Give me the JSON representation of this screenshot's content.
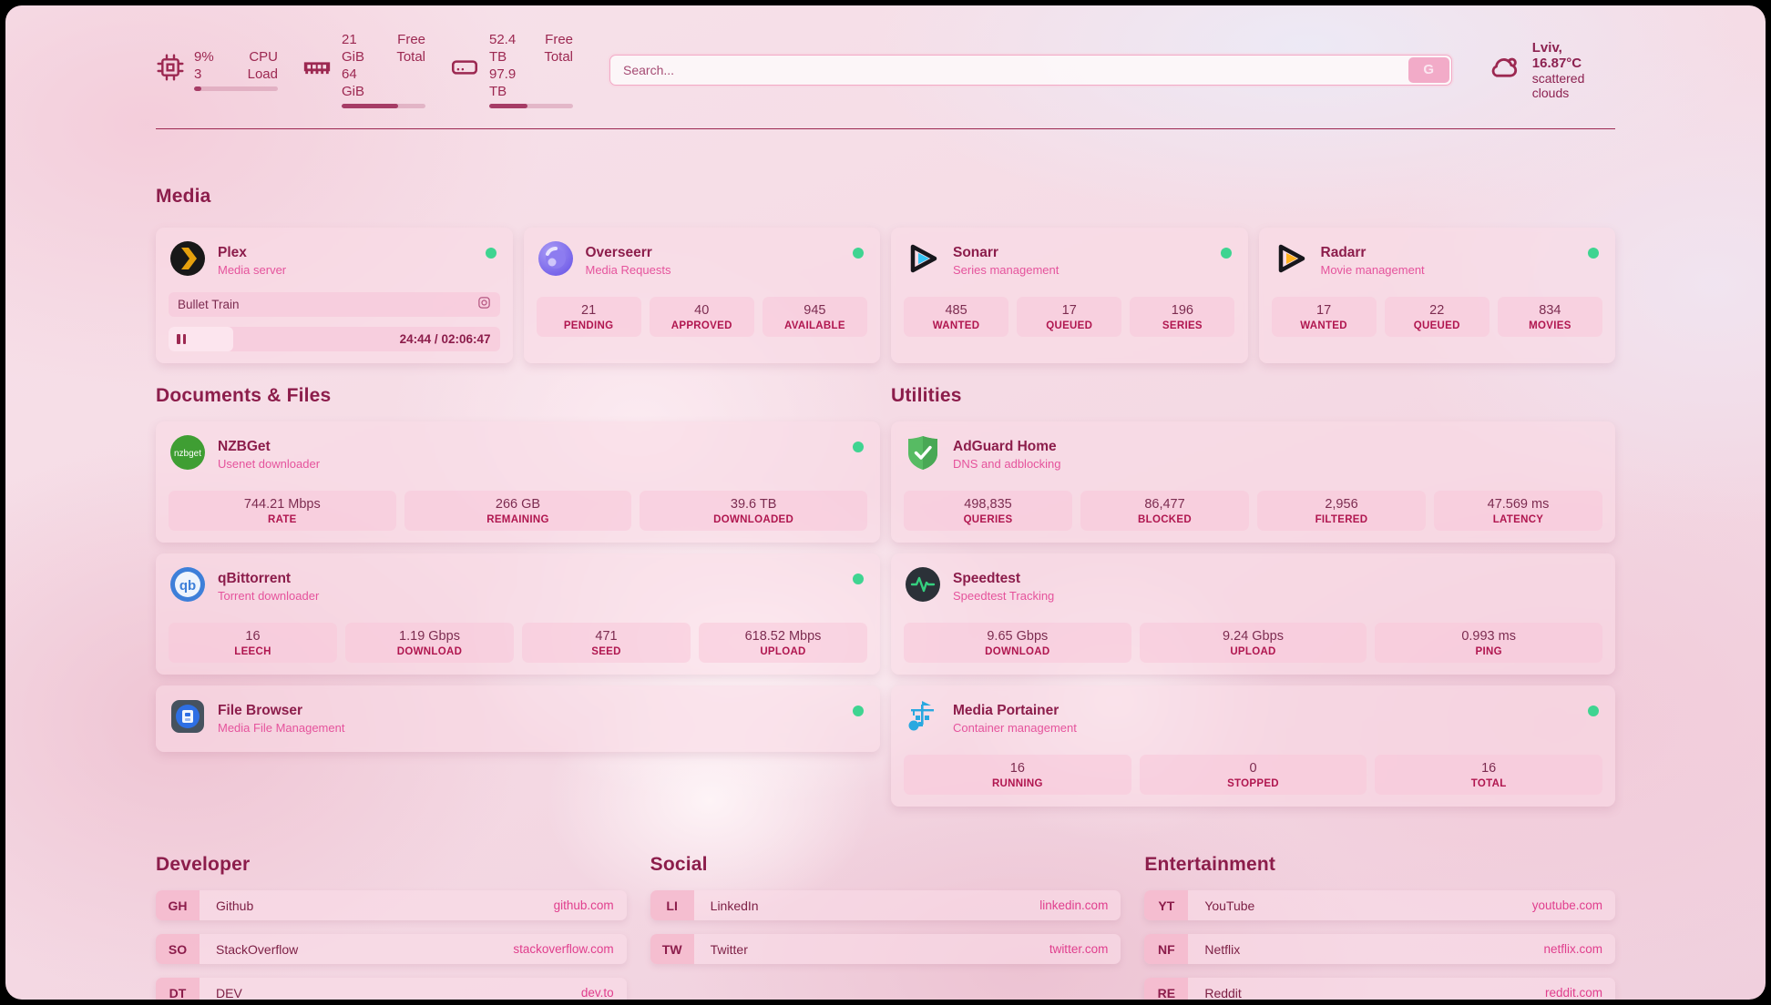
{
  "colors": {
    "accent": "#9c2851",
    "status_online": "#3fd491",
    "subtitle_pink": "#e5539c",
    "url_pink": "#e03e8d"
  },
  "topbar": {
    "stats": [
      {
        "icon": "cpu-icon",
        "values": [
          "9%",
          "3"
        ],
        "labels": [
          "CPU",
          "Load"
        ],
        "progress_pct": 9
      },
      {
        "icon": "ram-icon",
        "values": [
          "21 GiB",
          "64 GiB"
        ],
        "labels": [
          "Free",
          "Total"
        ],
        "progress_pct": 67
      },
      {
        "icon": "disk-icon",
        "values": [
          "52.4 TB",
          "97.9 TB"
        ],
        "labels": [
          "Free",
          "Total"
        ],
        "progress_pct": 46
      }
    ],
    "search": {
      "placeholder": "Search...",
      "button_label": "G"
    },
    "weather": {
      "icon": "cloud-icon",
      "location_temp": "Lviv, 16.87°C",
      "condition": "scattered clouds"
    }
  },
  "sections": {
    "media": {
      "title": "Media",
      "apps": [
        {
          "name": "Plex",
          "subtitle": "Media server",
          "icon": "plex-icon",
          "online": true,
          "now_playing": {
            "title": "Bullet Train",
            "elapsed": "24:44",
            "separator": "/",
            "duration": "02:06:47",
            "progress_pct": 19.5
          }
        },
        {
          "name": "Overseerr",
          "subtitle": "Media Requests",
          "icon": "overseerr-icon",
          "online": true,
          "stats": [
            {
              "value": "21",
              "label": "PENDING"
            },
            {
              "value": "40",
              "label": "APPROVED"
            },
            {
              "value": "945",
              "label": "AVAILABLE"
            }
          ]
        },
        {
          "name": "Sonarr",
          "subtitle": "Series management",
          "icon": "sonarr-icon",
          "online": true,
          "stats": [
            {
              "value": "485",
              "label": "WANTED"
            },
            {
              "value": "17",
              "label": "QUEUED"
            },
            {
              "value": "196",
              "label": "SERIES"
            }
          ]
        },
        {
          "name": "Radarr",
          "subtitle": "Movie management",
          "icon": "radarr-icon",
          "online": true,
          "stats": [
            {
              "value": "17",
              "label": "WANTED"
            },
            {
              "value": "22",
              "label": "QUEUED"
            },
            {
              "value": "834",
              "label": "MOVIES"
            }
          ]
        }
      ]
    },
    "documents": {
      "title": "Documents & Files",
      "apps": [
        {
          "name": "NZBGet",
          "subtitle": "Usenet downloader",
          "icon": "nzbget-icon",
          "online": true,
          "stats": [
            {
              "value": "744.21 Mbps",
              "label": "RATE"
            },
            {
              "value": "266 GB",
              "label": "REMAINING"
            },
            {
              "value": "39.6 TB",
              "label": "DOWNLOADED"
            }
          ]
        },
        {
          "name": "qBittorrent",
          "subtitle": "Torrent downloader",
          "icon": "qbittorrent-icon",
          "online": true,
          "stats": [
            {
              "value": "16",
              "label": "LEECH"
            },
            {
              "value": "1.19 Gbps",
              "label": "DOWNLOAD"
            },
            {
              "value": "471",
              "label": "SEED"
            },
            {
              "value": "618.52 Mbps",
              "label": "UPLOAD"
            }
          ]
        },
        {
          "name": "File Browser",
          "subtitle": "Media File Management",
          "icon": "filebrowser-icon",
          "online": true,
          "stats": []
        }
      ]
    },
    "utilities": {
      "title": "Utilities",
      "apps": [
        {
          "name": "AdGuard Home",
          "subtitle": "DNS and adblocking",
          "icon": "adguard-icon",
          "online": false,
          "stats": [
            {
              "value": "498,835",
              "label": "QUERIES"
            },
            {
              "value": "86,477",
              "label": "BLOCKED"
            },
            {
              "value": "2,956",
              "label": "FILTERED"
            },
            {
              "value": "47.569 ms",
              "label": "LATENCY"
            }
          ]
        },
        {
          "name": "Speedtest",
          "subtitle": "Speedtest Tracking",
          "icon": "speedtest-icon",
          "online": false,
          "stats": [
            {
              "value": "9.65 Gbps",
              "label": "DOWNLOAD"
            },
            {
              "value": "9.24 Gbps",
              "label": "UPLOAD"
            },
            {
              "value": "0.993 ms",
              "label": "PING"
            }
          ]
        },
        {
          "name": "Media Portainer",
          "subtitle": "Container management",
          "icon": "portainer-icon",
          "online": true,
          "stats": [
            {
              "value": "16",
              "label": "RUNNING"
            },
            {
              "value": "0",
              "label": "STOPPED"
            },
            {
              "value": "16",
              "label": "TOTAL"
            }
          ]
        }
      ]
    },
    "developer": {
      "title": "Developer",
      "bookmarks": [
        {
          "abbr": "GH",
          "name": "Github",
          "url": "github.com"
        },
        {
          "abbr": "SO",
          "name": "StackOverflow",
          "url": "stackoverflow.com"
        },
        {
          "abbr": "DT",
          "name": "DEV",
          "url": "dev.to"
        }
      ]
    },
    "social": {
      "title": "Social",
      "bookmarks": [
        {
          "abbr": "LI",
          "name": "LinkedIn",
          "url": "linkedin.com"
        },
        {
          "abbr": "TW",
          "name": "Twitter",
          "url": "twitter.com"
        }
      ]
    },
    "entertainment": {
      "title": "Entertainment",
      "bookmarks": [
        {
          "abbr": "YT",
          "name": "YouTube",
          "url": "youtube.com"
        },
        {
          "abbr": "NF",
          "name": "Netflix",
          "url": "netflix.com"
        },
        {
          "abbr": "RE",
          "name": "Reddit",
          "url": "reddit.com"
        }
      ]
    }
  }
}
